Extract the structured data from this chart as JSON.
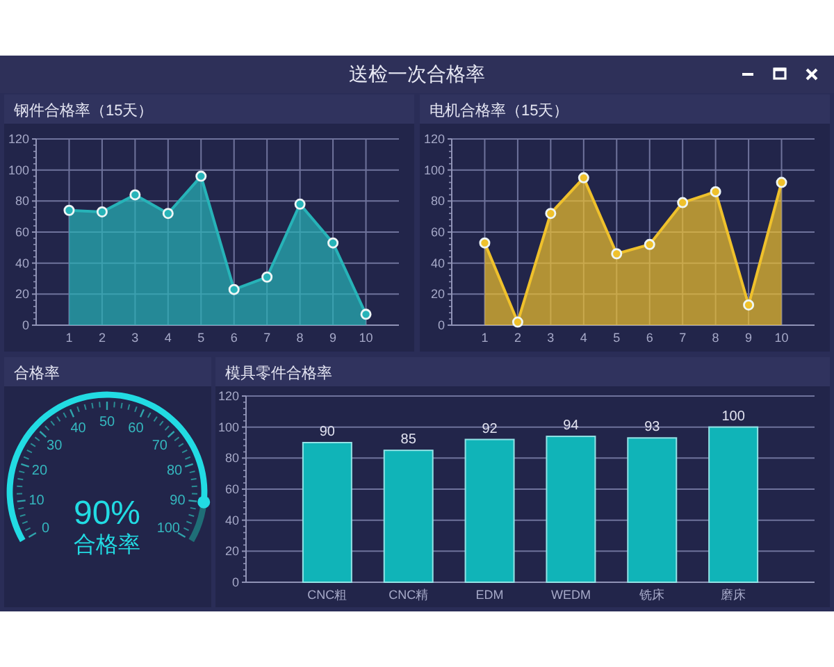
{
  "chart_data": [
    {
      "type": "other",
      "title": "送检一次合格率"
    },
    {
      "type": "area",
      "title": "钢件合格率（15天）",
      "x": [
        1,
        2,
        3,
        4,
        5,
        6,
        7,
        8,
        9,
        10
      ],
      "xlim": [
        0,
        11
      ],
      "xticks": [
        1,
        2,
        3,
        4,
        5,
        6,
        7,
        8,
        9,
        10
      ],
      "ylim": [
        0,
        120
      ],
      "yticks": [
        0,
        20,
        40,
        60,
        80,
        100,
        120
      ],
      "grid": true,
      "marker": "circle",
      "series": [
        {
          "color": "#27b3b8",
          "values": [
            74,
            73,
            84,
            72,
            96,
            23,
            31,
            78,
            53,
            7
          ]
        }
      ]
    },
    {
      "type": "area",
      "title": "电机合格率（15天）",
      "x": [
        1,
        2,
        3,
        4,
        5,
        6,
        7,
        8,
        9,
        10
      ],
      "xlim": [
        0,
        11
      ],
      "xticks": [
        1,
        2,
        3,
        4,
        5,
        6,
        7,
        8,
        9,
        10
      ],
      "ylim": [
        0,
        120
      ],
      "yticks": [
        0,
        20,
        40,
        60,
        80,
        100,
        120
      ],
      "grid": true,
      "marker": "circle",
      "series": [
        {
          "color": "#efc12c",
          "values": [
            53,
            2,
            72,
            95,
            46,
            52,
            79,
            86,
            13,
            92
          ]
        }
      ]
    },
    {
      "type": "donut",
      "title": "合格率",
      "categories": [
        null,
        null
      ],
      "values": [
        90,
        10
      ],
      "colors": [
        "#22dbe3",
        "#1f6e77"
      ],
      "annotations": [
        "90%",
        "合格率",
        "0",
        "10",
        "20",
        "30",
        "40",
        "50",
        "60",
        "70",
        "80",
        "90",
        "100"
      ]
    },
    {
      "type": "bar",
      "title": "模具零件合格率",
      "categories": [
        "CNC粗",
        "CNC精",
        "EDM",
        "WEDM",
        "铣床",
        "磨床"
      ],
      "values": [
        90,
        85,
        92,
        94,
        93,
        100
      ],
      "color": "#10b4b8",
      "ylim": [
        0,
        120
      ],
      "yticks": [
        0,
        20,
        40,
        60,
        80,
        100,
        120
      ],
      "grid": "y",
      "data_labels": true
    }
  ]
}
